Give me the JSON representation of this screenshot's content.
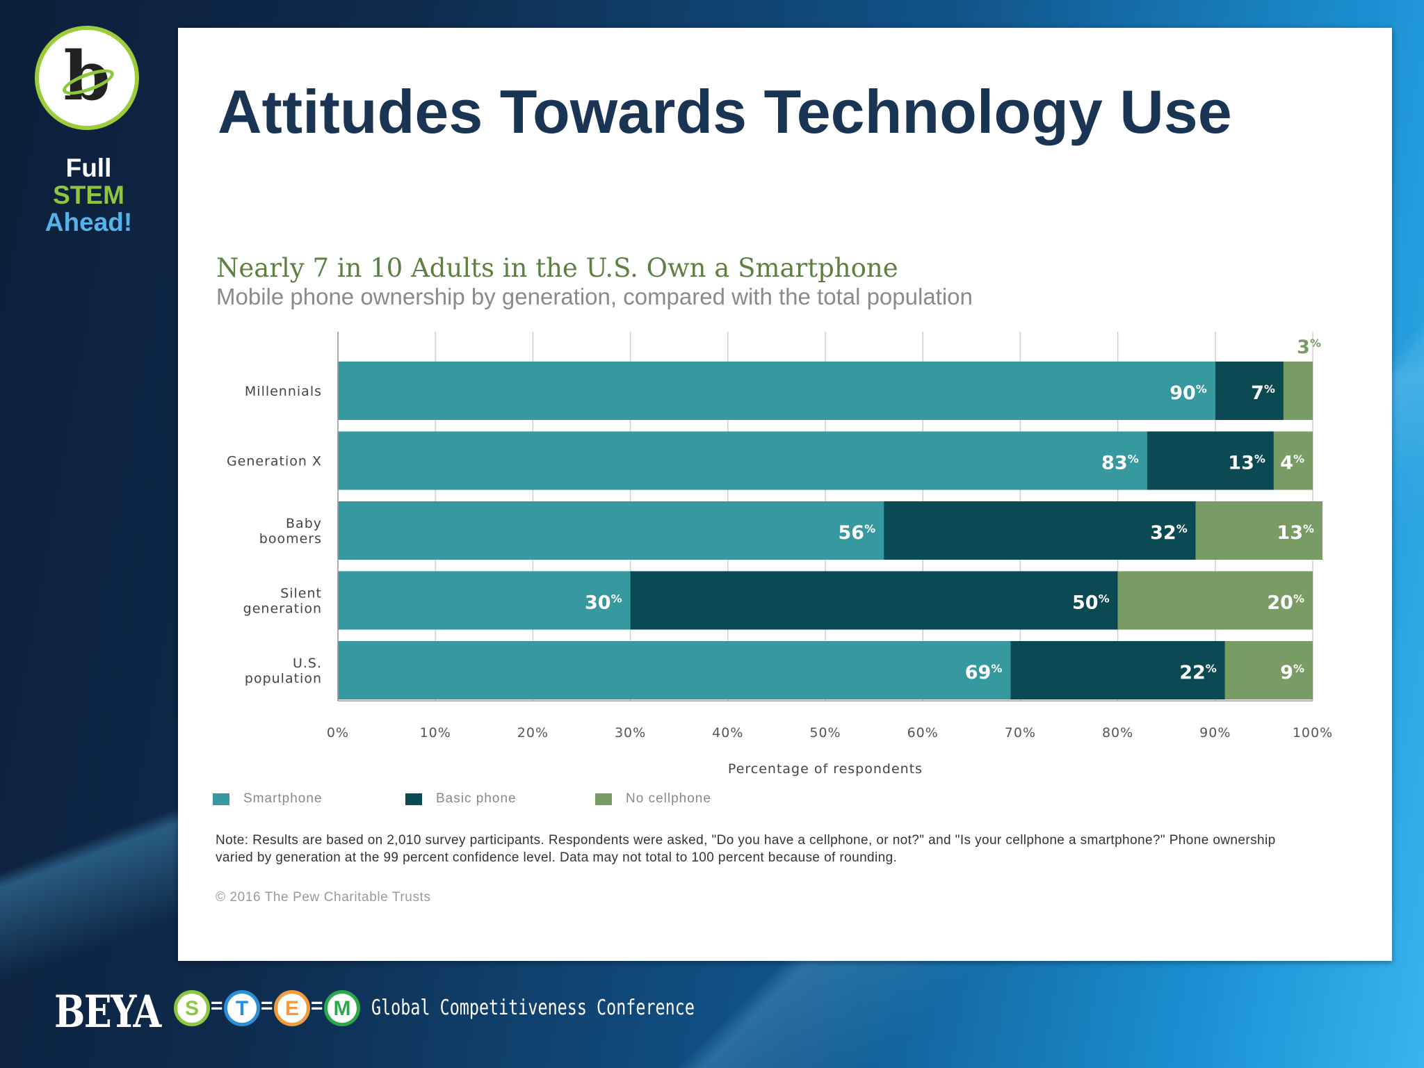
{
  "sidebar": {
    "brand_line1": "Full",
    "brand_line2": "STEM",
    "brand_line3": "Ahead!",
    "logo_letter": "b"
  },
  "slide": {
    "title": "Attitudes Towards Technology Use"
  },
  "chart_data": {
    "type": "bar",
    "orientation": "horizontal",
    "stacked": true,
    "title": "Nearly 7 in 10 Adults in the U.S. Own a Smartphone",
    "subtitle": "Mobile phone ownership by generation, compared with the total population",
    "xlabel": "Percentage of respondents",
    "ylabel": "",
    "xlim": [
      0,
      100
    ],
    "x_ticks": [
      "0%",
      "10%",
      "20%",
      "30%",
      "40%",
      "50%",
      "60%",
      "70%",
      "80%",
      "90%",
      "100%"
    ],
    "categories": [
      "Millennials",
      "Generation X",
      "Baby boomers",
      "Silent generation",
      "U.S. population"
    ],
    "category_lines": [
      [
        "Millennials"
      ],
      [
        "Generation X"
      ],
      [
        "Baby",
        "boomers"
      ],
      [
        "Silent",
        "generation"
      ],
      [
        "U.S.",
        "population"
      ]
    ],
    "series": [
      {
        "name": "Smartphone",
        "color": "#35999f",
        "values": [
          90,
          83,
          56,
          30,
          69
        ]
      },
      {
        "name": "Basic phone",
        "color": "#0c4a53",
        "values": [
          7,
          13,
          32,
          50,
          22
        ]
      },
      {
        "name": "No cellphone",
        "color": "#789c64",
        "values": [
          3,
          4,
          13,
          20,
          9
        ]
      }
    ],
    "value_suffix": "%",
    "grid": true,
    "legend_position": "bottom-left"
  },
  "note": "Note: Results are based on 2,010 survey participants. Respondents were asked, \"Do you have a cellphone, or not?\" and \"Is your cellphone a smartphone?\" Phone ownership varied by generation at the 99 percent confidence level. Data may not total to 100 percent because of rounding.",
  "copyright": "© 2016 The Pew Charitable Trusts",
  "footer": {
    "brand": "BEYA",
    "stem_letters": [
      "S",
      "T",
      "E",
      "M"
    ],
    "stem_colors": [
      "#8ec63f",
      "#2a8fd6",
      "#f39a3b",
      "#2aa84a"
    ],
    "conference": "Global Competitiveness Conference"
  }
}
